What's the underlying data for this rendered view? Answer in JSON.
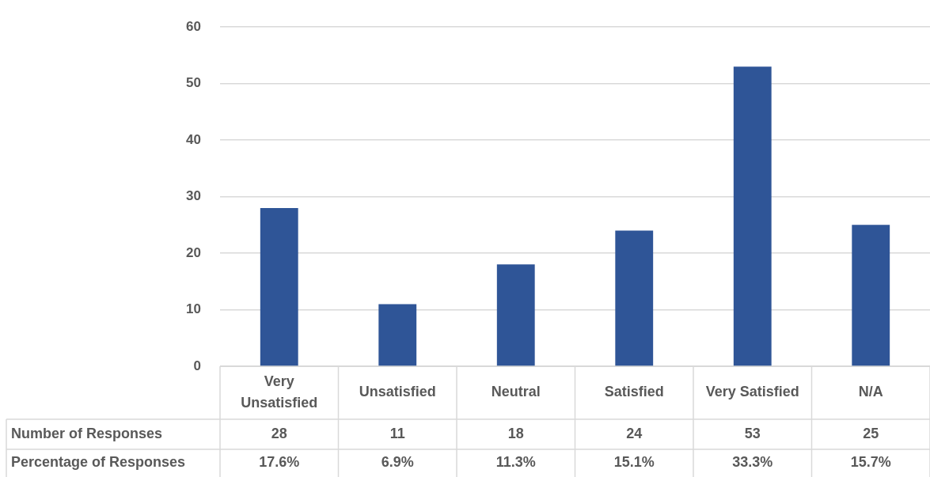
{
  "chart_data": {
    "type": "bar",
    "categories": [
      "Very Unsatisfied",
      "Unsatisfied",
      "Neutral",
      "Satisfied",
      "Very Satisfied",
      "N/A"
    ],
    "series": [
      {
        "name": "Number of Responses",
        "color": "#2f5597",
        "values": [
          28,
          11,
          18,
          24,
          53,
          25
        ]
      }
    ],
    "ylim": [
      0,
      60
    ],
    "yticks": [
      0,
      10,
      20,
      30,
      40,
      50,
      60
    ],
    "grid": "y",
    "data_labels": true,
    "annotations": [
      "Percentage of Responses",
      "17.6%",
      "6.9%",
      "11.3%",
      "15.1%",
      "33.3%",
      "15.7%"
    ]
  }
}
